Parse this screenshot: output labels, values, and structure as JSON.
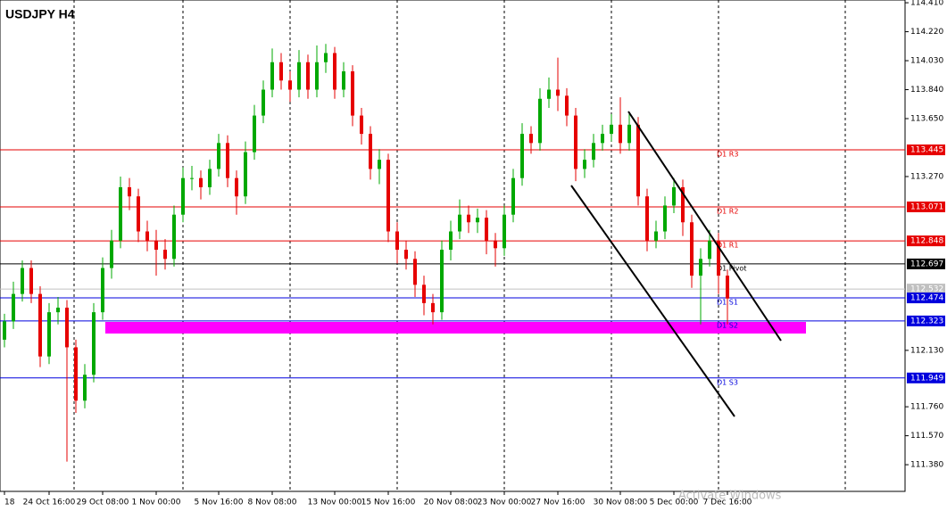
{
  "chart_data": {
    "type": "candlestick",
    "title": "USDJPY H4",
    "categories": [
      "18",
      null,
      null,
      null,
      null,
      "24 Oct 16:00",
      null,
      null,
      null,
      null,
      null,
      "29 Oct 08:00",
      null,
      null,
      null,
      null,
      null,
      "1 Nov 00:00",
      null,
      null,
      null,
      null,
      null,
      null,
      "5 Nov 16:00",
      null,
      null,
      null,
      null,
      null,
      "8 Nov 08:00",
      null,
      null,
      null,
      null,
      null,
      null,
      "13 Nov 00:00",
      null,
      null,
      null,
      null,
      null,
      "15 Nov 16:00",
      null,
      null,
      null,
      null,
      null,
      null,
      "20 Nov 08:00",
      null,
      null,
      null,
      null,
      null,
      "23 Nov 00:00",
      null,
      null,
      null,
      null,
      null,
      "27 Nov 16:00",
      null,
      null,
      null,
      null,
      null,
      null,
      "30 Nov 08:00",
      null,
      null,
      null,
      null,
      null,
      "5 Dec 00:00",
      null,
      null,
      null,
      null,
      null,
      "7 Dec 16:00"
    ],
    "open": [
      112.2,
      112.32,
      112.5,
      112.67,
      112.5,
      112.09,
      112.38,
      112.41,
      112.15,
      111.8,
      111.97,
      112.38,
      112.67,
      112.85,
      113.2,
      113.14,
      112.91,
      112.85,
      112.79,
      112.73,
      113.02,
      113.26,
      113.26,
      113.2,
      113.32,
      113.49,
      113.26,
      113.14,
      113.43,
      113.67,
      113.84,
      114.02,
      113.9,
      113.84,
      114.02,
      113.84,
      114.02,
      114.08,
      113.84,
      113.96,
      113.67,
      113.55,
      113.32,
      113.38,
      112.91,
      112.79,
      112.73,
      112.56,
      112.44,
      112.38,
      112.79,
      112.91,
      113.02,
      112.97,
      113.0,
      112.85,
      112.8,
      113.02,
      113.26,
      113.55,
      113.49,
      113.78,
      113.84,
      113.8,
      113.67,
      113.32,
      113.38,
      113.49,
      113.55,
      113.61,
      113.49,
      113.61,
      113.14,
      112.85,
      112.91,
      113.08,
      113.2,
      112.97,
      112.62,
      112.73,
      112.85,
      112.62
    ],
    "high": [
      112.37,
      112.58,
      112.72,
      112.72,
      112.55,
      112.44,
      112.48,
      112.46,
      112.2,
      112.04,
      112.44,
      112.74,
      112.92,
      113.27,
      113.26,
      113.19,
      112.98,
      112.92,
      112.86,
      113.08,
      113.33,
      113.34,
      113.31,
      113.38,
      113.55,
      113.54,
      113.31,
      113.5,
      113.74,
      113.9,
      114.11,
      114.08,
      113.96,
      114.1,
      114.07,
      114.13,
      114.14,
      114.12,
      114.02,
      114.0,
      113.72,
      113.6,
      113.45,
      113.42,
      112.97,
      112.85,
      112.78,
      112.62,
      112.5,
      112.85,
      112.98,
      113.12,
      113.08,
      113.06,
      113.05,
      112.9,
      113.08,
      113.32,
      113.62,
      113.6,
      113.85,
      113.92,
      114.05,
      113.85,
      113.72,
      113.45,
      113.55,
      113.61,
      113.68,
      113.79,
      113.68,
      113.66,
      113.19,
      112.98,
      113.14,
      113.26,
      113.25,
      113.02,
      112.8,
      112.92,
      112.9,
      112.66
    ],
    "low": [
      112.15,
      112.27,
      112.45,
      112.44,
      112.02,
      112.04,
      112.3,
      111.4,
      111.72,
      111.75,
      111.92,
      112.33,
      112.6,
      112.8,
      113.05,
      112.84,
      112.78,
      112.62,
      112.66,
      112.68,
      112.97,
      113.18,
      113.12,
      113.15,
      113.27,
      113.2,
      113.02,
      113.09,
      113.38,
      113.62,
      113.79,
      113.84,
      113.76,
      113.79,
      113.78,
      113.79,
      113.95,
      113.78,
      113.79,
      113.6,
      113.48,
      113.25,
      113.22,
      112.84,
      112.7,
      112.66,
      112.48,
      112.36,
      112.3,
      112.33,
      112.72,
      112.86,
      112.9,
      112.9,
      112.76,
      112.68,
      112.75,
      112.97,
      113.21,
      113.42,
      113.44,
      113.72,
      113.7,
      113.6,
      113.24,
      113.26,
      113.33,
      113.44,
      113.5,
      113.42,
      113.44,
      113.08,
      112.78,
      112.8,
      112.86,
      113.03,
      112.88,
      112.54,
      112.3,
      112.68,
      112.5,
      112.3
    ],
    "close": [
      112.32,
      112.5,
      112.67,
      112.5,
      112.09,
      112.38,
      112.41,
      112.15,
      111.8,
      111.97,
      112.38,
      112.67,
      112.85,
      113.2,
      113.14,
      112.91,
      112.85,
      112.79,
      112.73,
      113.02,
      113.26,
      113.26,
      113.2,
      113.32,
      113.49,
      113.26,
      113.14,
      113.43,
      113.67,
      113.84,
      114.02,
      113.9,
      113.84,
      114.02,
      113.84,
      114.02,
      114.08,
      113.84,
      113.96,
      113.67,
      113.55,
      113.32,
      113.38,
      112.91,
      112.79,
      112.73,
      112.56,
      112.44,
      112.38,
      112.79,
      112.91,
      113.02,
      112.97,
      113.0,
      112.85,
      112.8,
      113.02,
      113.26,
      113.55,
      113.49,
      113.78,
      113.84,
      113.8,
      113.67,
      113.32,
      113.38,
      113.49,
      113.55,
      113.61,
      113.49,
      113.61,
      113.14,
      112.85,
      112.91,
      113.08,
      113.2,
      112.97,
      112.62,
      112.73,
      112.85,
      112.62,
      112.47
    ],
    "up_color": "#00a800",
    "down_color": "#e60000",
    "ylim": [
      111.205,
      114.428
    ],
    "yticks": [
      {
        "value": 114.41,
        "label": "114.410"
      },
      {
        "value": 114.22,
        "label": "114.220"
      },
      {
        "value": 114.03,
        "label": "114.030"
      },
      {
        "value": 113.84,
        "label": "113.840"
      },
      {
        "value": 113.65,
        "label": "113.650"
      },
      {
        "value": 113.27,
        "label": "113.270"
      },
      {
        "value": 112.13,
        "label": "112.130"
      },
      {
        "value": 111.76,
        "label": "111.760"
      },
      {
        "value": 111.57,
        "label": "111.570"
      },
      {
        "value": 111.38,
        "label": "111.380"
      }
    ],
    "levels": [
      {
        "name": "D1 R3",
        "value": 113.445,
        "label": "113.445",
        "color": "#e60000"
      },
      {
        "name": "D1 R2",
        "value": 113.071,
        "label": "113.071",
        "color": "#e60000"
      },
      {
        "name": "D1 R1",
        "value": 112.848,
        "label": "112.848",
        "color": "#e60000"
      },
      {
        "name": "D1 Pivot",
        "value": 112.697,
        "label": "112.697",
        "color": "#000000"
      },
      {
        "name": "D1 S1",
        "value": 112.474,
        "label": "112.474",
        "color": "#0000dd"
      },
      {
        "name": "D1 S2",
        "value": 112.323,
        "label": "112.323",
        "color": "#0000dd"
      },
      {
        "name": "D1 S3",
        "value": 111.949,
        "label": "111.949",
        "color": "#0000dd"
      }
    ],
    "current_price": {
      "value": 112.532,
      "label": "112.532",
      "color": "#c0c0c0"
    },
    "watermark": "Activate Windows"
  }
}
